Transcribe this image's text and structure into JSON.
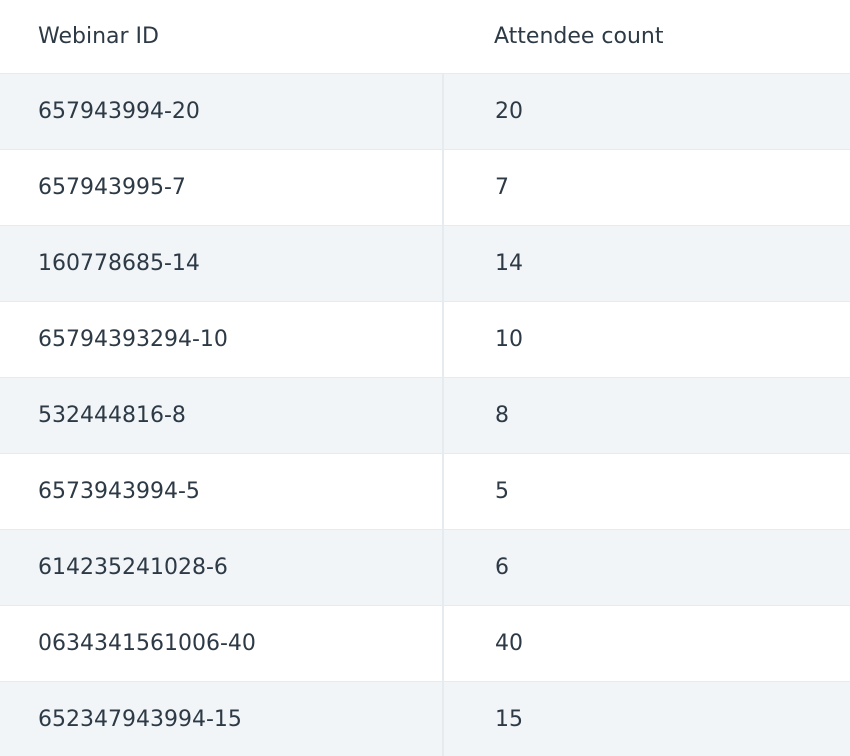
{
  "table": {
    "header": [
      "Webinar ID",
      "Attendee count"
    ],
    "rows": [
      [
        "657943994-20",
        "20"
      ],
      [
        "657943995-7",
        "7"
      ],
      [
        "160778685-14",
        "14"
      ],
      [
        "65794393294-10",
        "10"
      ],
      [
        "532444816-8",
        "8"
      ],
      [
        "6573943994-5",
        "5"
      ],
      [
        "614235241028-6",
        "6"
      ],
      [
        "0634341561006-40",
        "40"
      ],
      [
        "652347943994-15",
        "15"
      ]
    ]
  }
}
